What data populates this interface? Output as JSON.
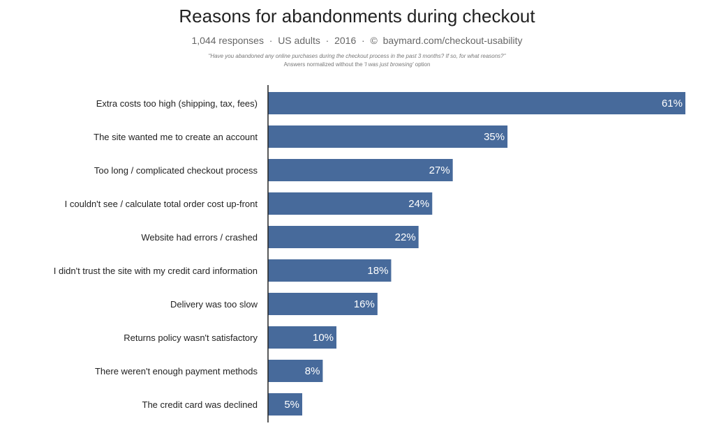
{
  "chart_data": {
    "type": "bar",
    "orientation": "horizontal",
    "title": "Reasons for abandonments during checkout",
    "subtitle": "1,044 responses  ·  US adults  ·  2016  ·  ©  baymard.com/checkout-usability",
    "question": "\"Have you abandoned any online purchases during the checkout process in the past 3 months? If so, for what reasons?\"",
    "note_prefix": "Answers normalized without the ",
    "note_italic": "'I was just browsing'",
    "note_suffix": " option",
    "categories": [
      "Extra costs too high (shipping, tax, fees)",
      "The site wanted me to create an account",
      "Too long / complicated checkout process",
      "I couldn't see / calculate total order cost up-front",
      "Website had errors / crashed",
      "I didn't trust the site with my credit card information",
      "Delivery was too slow",
      "Returns policy wasn't satisfactory",
      "There weren't enough payment methods",
      "The credit card was declined"
    ],
    "values": [
      61,
      35,
      27,
      24,
      22,
      18,
      16,
      10,
      8,
      5
    ],
    "labels": [
      "61%",
      "35%",
      "27%",
      "24%",
      "22%",
      "18%",
      "16%",
      "10%",
      "8%",
      "5%"
    ],
    "xlim": [
      0,
      61
    ],
    "bar_color": "#476a9b",
    "grid": false
  }
}
